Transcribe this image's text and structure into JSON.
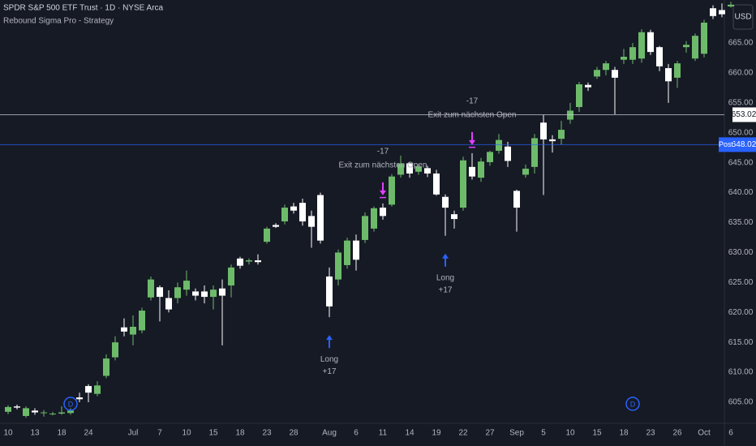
{
  "chart_data": {
    "type": "candlestick",
    "title": "SPDR S&P 500 ETF Trust · 1D · NYSE Arca",
    "subtitle": "Rebound Sigma Pro - Strategy",
    "currency": "USD",
    "categories": [
      "10",
      null,
      null,
      "13",
      null,
      null,
      "18",
      null,
      null,
      "24",
      null,
      null,
      null,
      null,
      "Jul",
      null,
      null,
      "7",
      null,
      null,
      "10",
      null,
      null,
      "15",
      null,
      null,
      "18",
      null,
      null,
      "23",
      null,
      null,
      "28",
      null,
      null,
      null,
      "Aug",
      null,
      null,
      "6",
      null,
      null,
      "11",
      null,
      null,
      "14",
      null,
      null,
      "19",
      null,
      null,
      "22",
      null,
      null,
      "27",
      null,
      null,
      "Sep",
      null,
      null,
      "5",
      null,
      null,
      "10",
      null,
      null,
      "15",
      null,
      null,
      "18",
      null,
      null,
      "23",
      null,
      null,
      "26",
      null,
      null,
      "Oct",
      null,
      null,
      "6"
    ],
    "series": [
      {
        "open": [
          603.4,
          604.3,
          602.7,
          603.6,
          603.2,
          603.0,
          603.1,
          603.2,
          605.8,
          607.7,
          606.4,
          609.4,
          612.5,
          617.5,
          616.3,
          617.0,
          622.5,
          624.2,
          622.4,
          622.4,
          623.8,
          623.5,
          623.5,
          622.6,
          624.0,
          624.5,
          629.0,
          628.5,
          628.7,
          631.8,
          634.6,
          635.2,
          637.7,
          638.3,
          636.1,
          639.6,
          626.0,
          625.5,
          627.9,
          632.0,
          632.1,
          634.0,
          637.5,
          638.0,
          643.0,
          644.9,
          643.5,
          644.1,
          643.2,
          639.3,
          636.4,
          637.5,
          644.3,
          642.5,
          645.1,
          647.0,
          647.7,
          640.3,
          643.0,
          644.3,
          651.7,
          648.9,
          649.0,
          652.2,
          654.3,
          658.0,
          659.4,
          660.5,
          660.5,
          662.2,
          662.2,
          662.4,
          666.8,
          664.3,
          660.8,
          659.2,
          664.3,
          662.4,
          663.2,
          670.8,
          670.5,
          671.1
        ],
        "high": [
          604.5,
          604.6,
          604.3,
          604.0,
          603.7,
          603.4,
          604.3,
          604.0,
          606.6,
          608.0,
          608.5,
          613.0,
          616.0,
          619.0,
          619.5,
          620.8,
          626.0,
          624.5,
          623.7,
          625.0,
          627.0,
          624.0,
          624.5,
          624.5,
          625.5,
          628.0,
          629.3,
          629.0,
          629.7,
          634.3,
          634.9,
          638.0,
          638.3,
          639.0,
          637.0,
          640.0,
          627.5,
          630.5,
          632.5,
          633.0,
          636.7,
          637.7,
          638.2,
          643.1,
          646.2,
          645.0,
          644.8,
          644.5,
          643.8,
          639.7,
          637.0,
          646.0,
          646.6,
          645.8,
          647.0,
          649.8,
          648.5,
          640.5,
          644.7,
          649.8,
          653.0,
          649.6,
          652.0,
          655.0,
          658.5,
          658.4,
          661.0,
          662.0,
          661.0,
          664.0,
          665.0,
          667.3,
          667.2,
          664.5,
          661.5,
          662.0,
          665.3,
          666.6,
          668.9,
          671.3,
          671.6,
          671.9
        ],
        "low": [
          603.0,
          603.8,
          602.4,
          602.9,
          602.6,
          602.8,
          602.9,
          602.9,
          605.0,
          605.0,
          606.0,
          609.0,
          612.0,
          616.0,
          614.5,
          616.5,
          622.0,
          618.5,
          620.0,
          621.5,
          622.8,
          622.0,
          621.5,
          620.5,
          614.5,
          622.5,
          627.3,
          628.0,
          628.0,
          631.5,
          634.1,
          634.7,
          636.5,
          634.5,
          630.8,
          631.5,
          619.2,
          624.5,
          627.3,
          627.0,
          631.6,
          633.5,
          635.5,
          637.7,
          642.5,
          642.5,
          643.0,
          642.6,
          639.5,
          632.8,
          634.0,
          637.0,
          642.2,
          641.8,
          644.5,
          646.5,
          644.3,
          633.5,
          642.5,
          643.2,
          639.6,
          646.7,
          648.0,
          651.5,
          653.5,
          657.0,
          659.0,
          659.6,
          653.1,
          661.5,
          661.5,
          661.7,
          663.0,
          660.3,
          655.0,
          657.5,
          663.4,
          662.0,
          662.6,
          669.0,
          669.3,
          670.9
        ],
        "close": [
          604.2,
          604.1,
          604.0,
          603.3,
          603.3,
          603.1,
          603.3,
          603.6,
          605.5,
          606.6,
          607.8,
          612.3,
          615.0,
          616.8,
          617.6,
          620.3,
          625.5,
          622.6,
          620.5,
          624.2,
          625.3,
          622.8,
          622.6,
          623.8,
          622.8,
          627.5,
          627.8,
          628.7,
          628.4,
          634.0,
          634.3,
          637.5,
          637.0,
          635.2,
          634.3,
          632.0,
          621.0,
          630.0,
          632.0,
          628.8,
          636.1,
          637.4,
          636.1,
          642.7,
          644.8,
          643.2,
          644.4,
          643.2,
          639.7,
          637.5,
          635.6,
          645.4,
          642.7,
          645.2,
          646.8,
          648.8,
          645.3,
          637.5,
          644.0,
          649.1,
          648.9,
          648.6,
          650.5,
          653.7,
          658.1,
          657.6,
          660.5,
          661.6,
          659.2,
          662.7,
          664.3,
          666.8,
          663.5,
          661.1,
          658.6,
          661.6,
          664.7,
          666.2,
          668.4,
          669.5,
          669.8,
          671.4
        ]
      }
    ],
    "up_color": "#6dbb6a",
    "down_color": "#ffffff",
    "ylim": [
      601.48,
      672.18
    ],
    "yticks": [
      {
        "value": 605,
        "label": "605.00"
      },
      {
        "value": 610,
        "label": "610.00"
      },
      {
        "value": 615,
        "label": "615.00"
      },
      {
        "value": 620,
        "label": "620.00"
      },
      {
        "value": 625,
        "label": "625.00"
      },
      {
        "value": 630,
        "label": "630.00"
      },
      {
        "value": 635,
        "label": "635.00"
      },
      {
        "value": 640,
        "label": "640.00"
      },
      {
        "value": 645,
        "label": "645.00"
      },
      {
        "value": 650,
        "label": "650.00"
      },
      {
        "value": 655,
        "label": "655.00"
      },
      {
        "value": 660,
        "label": "660.00"
      },
      {
        "value": 665,
        "label": "665.00"
      }
    ],
    "price_lines": [
      {
        "value": 653.02,
        "color": "#d1d4dc"
      },
      {
        "name": "Post",
        "value": 648.02,
        "color": "#2962ff"
      }
    ],
    "signals": [
      {
        "bar": 36,
        "side": "long",
        "label": "Long",
        "qty": "+17",
        "color": "#2962ff"
      },
      {
        "bar": 49,
        "side": "long",
        "label": "Long",
        "qty": "+17",
        "color": "#2962ff"
      },
      {
        "bar": 42,
        "side": "exit",
        "label": "Exit zum nächsten Open",
        "qty": "-17",
        "color": "#e040fb"
      },
      {
        "bar": 52,
        "side": "exit",
        "label": "Exit zum nächsten Open",
        "qty": "-17",
        "color": "#e040fb"
      }
    ],
    "events": [
      {
        "bar": 7,
        "label": "D"
      },
      {
        "bar": 70,
        "label": "D"
      }
    ]
  }
}
